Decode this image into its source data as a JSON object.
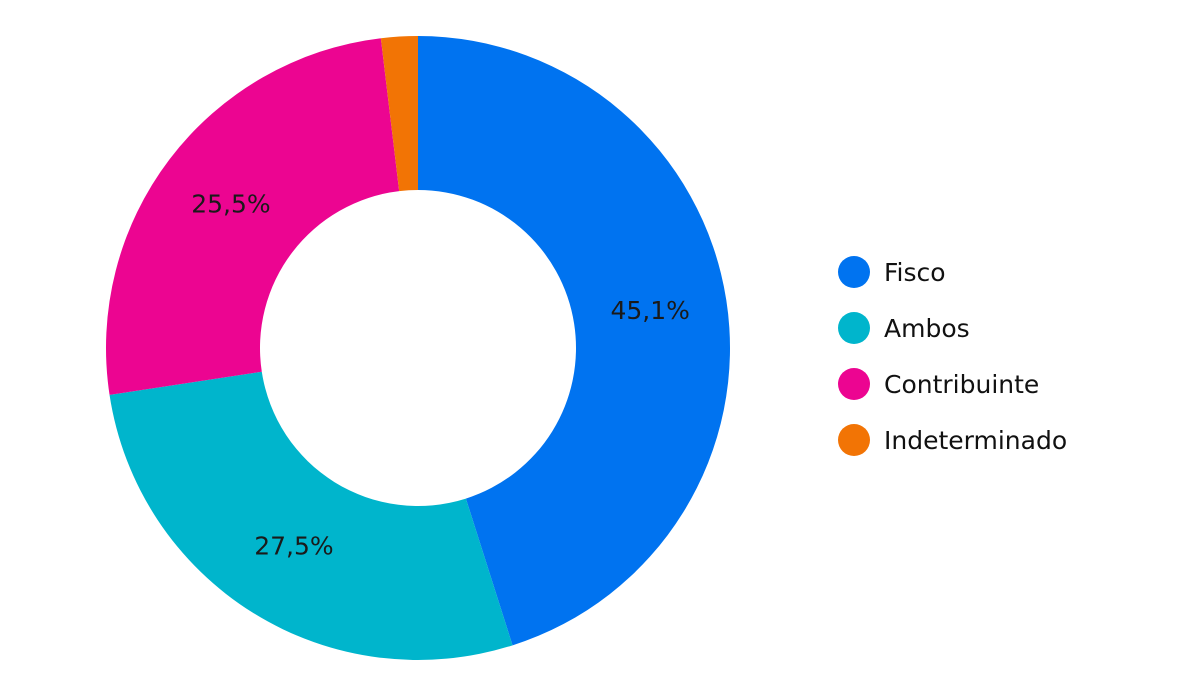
{
  "chart_data": {
    "type": "pie",
    "variant": "donut",
    "categories": [
      "Fisco",
      "Ambos",
      "Contribuinte",
      "Indeterminado"
    ],
    "values": [
      45.1,
      27.5,
      25.5,
      1.9
    ],
    "data_labels": [
      "45,1%",
      "27,5%",
      "25,5%",
      ""
    ],
    "colors": [
      "#0073F0",
      "#00B5CC",
      "#EC0591",
      "#F27405"
    ],
    "legend_position": "right",
    "start_angle": "12 o'clock",
    "direction": "clockwise"
  }
}
